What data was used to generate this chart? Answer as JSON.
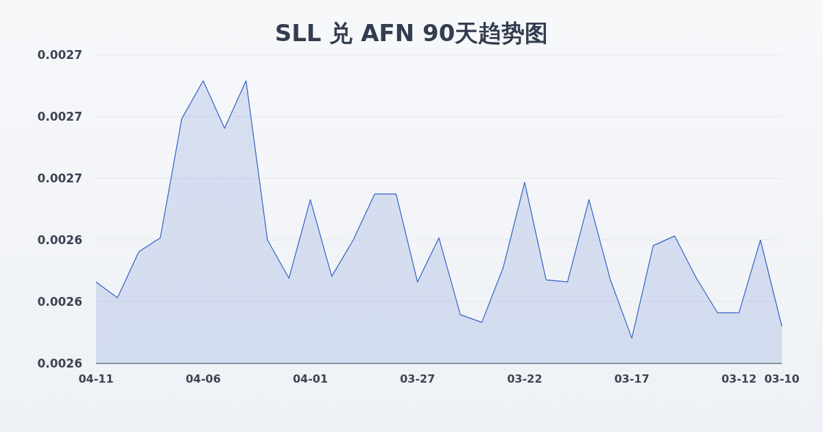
{
  "chart_data": {
    "type": "area",
    "title": "SLL 兑 AFN 90天趋势图",
    "categories": [
      "04-11",
      null,
      null,
      null,
      null,
      "04-06",
      null,
      null,
      null,
      null,
      "04-01",
      null,
      null,
      null,
      null,
      "03-27",
      null,
      null,
      null,
      null,
      "03-22",
      null,
      null,
      null,
      null,
      "03-17",
      null,
      null,
      null,
      null,
      "03-12",
      null,
      "03-10"
    ],
    "values": [
      0.0026264,
      0.0026213,
      0.0026362,
      0.0026407,
      0.0026793,
      0.0026916,
      0.0026762,
      0.0026916,
      0.00264,
      0.0026276,
      0.0026531,
      0.0026282,
      0.00264,
      0.0026549,
      0.0026549,
      0.0026264,
      0.0026407,
      0.0026158,
      0.0026133,
      0.0026311,
      0.0026587,
      0.0026271,
      0.0026264,
      0.0026531,
      0.0026271,
      0.0026082,
      0.0026382,
      0.0026413,
      0.0026278,
      0.0026164,
      0.0026164,
      0.00264,
      0.002612
    ],
    "color": "#2f5fc4",
    "ylim": [
      0.0026,
      0.0027
    ],
    "yticks": [
      {
        "value": 0.0026,
        "label": "0.0026"
      },
      {
        "value": 0.00262,
        "label": "0.0026"
      },
      {
        "value": 0.00264,
        "label": "0.0026"
      },
      {
        "value": 0.00266,
        "label": "0.0027"
      },
      {
        "value": 0.00268,
        "label": "0.0027"
      },
      {
        "value": 0.0027,
        "label": "0.0027"
      }
    ],
    "grid": "y"
  }
}
